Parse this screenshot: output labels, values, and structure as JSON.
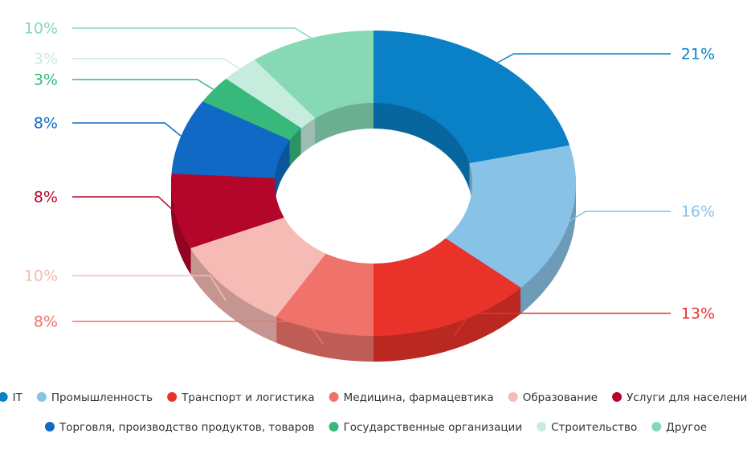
{
  "chart_data": {
    "type": "donut",
    "categories": [
      "IT",
      "Промышленность",
      "Транспорт и логистика",
      "Медицина, фармацевтика",
      "Образование",
      "Услуги для населения",
      "Торговля, производство продуктов, товаров",
      "Государственные организации",
      "Строительство",
      "Другое"
    ],
    "values": [
      21,
      16,
      13,
      8,
      10,
      8,
      8,
      3,
      3,
      10
    ],
    "value_labels": [
      "21%",
      "16%",
      "13%",
      "8%",
      "10%",
      "8%",
      "8%",
      "3%",
      "3%",
      "10%"
    ],
    "colors": [
      "#0a80c6",
      "#88c2e6",
      "#e8322a",
      "#ef736a",
      "#f6bbb5",
      "#b4062b",
      "#0f69c5",
      "#36b97b",
      "#c6ecde",
      "#87d9b5"
    ]
  }
}
